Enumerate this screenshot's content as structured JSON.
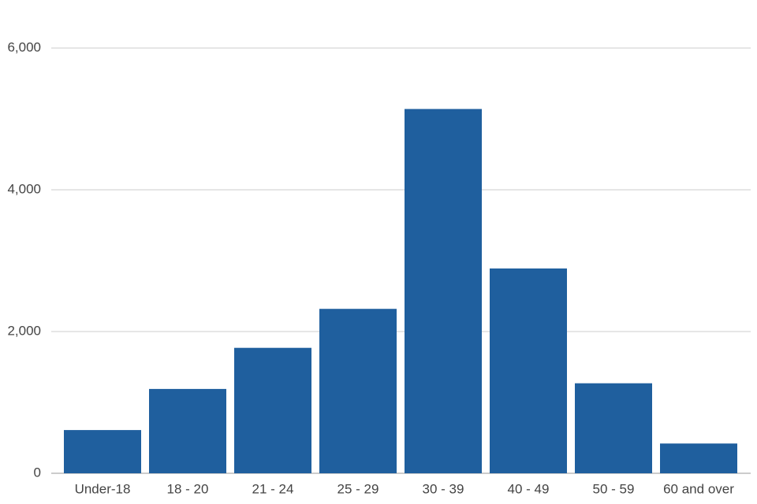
{
  "chart_data": {
    "type": "bar",
    "categories": [
      "Under-18",
      "18 - 20",
      "21 - 24",
      "25 - 29",
      "30 - 39",
      "40 - 49",
      "50 - 59",
      "60 and over"
    ],
    "values": [
      610,
      1190,
      1770,
      2320,
      5140,
      2890,
      1270,
      420
    ],
    "color": "#1f5f9e",
    "ylim": [
      0,
      6000
    ],
    "yticks": [
      0,
      {
        "value": 2000,
        "label": "2,000"
      },
      {
        "value": 4000,
        "label": "4,000"
      },
      {
        "value": 6000,
        "label": "6,000"
      }
    ],
    "grid": true
  }
}
